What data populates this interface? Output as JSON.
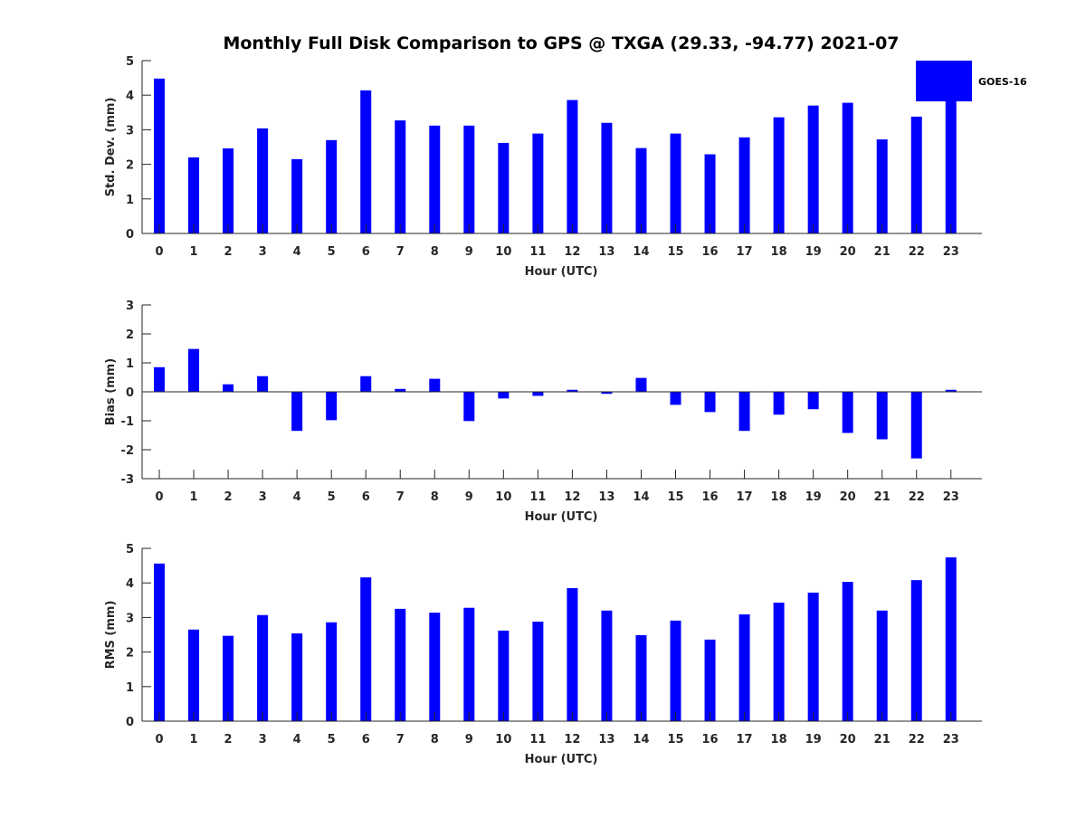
{
  "chart_data": {
    "title": "Monthly Full Disk Comparison to GPS @ TXGA (29.33, -94.77) 2021-07",
    "legend": {
      "entries": [
        "GOES-16"
      ],
      "placement": "top-right"
    },
    "bar_color": "#0000ff",
    "categories": [
      "0",
      "1",
      "2",
      "3",
      "4",
      "5",
      "6",
      "7",
      "8",
      "9",
      "10",
      "11",
      "12",
      "13",
      "14",
      "15",
      "16",
      "17",
      "18",
      "19",
      "20",
      "21",
      "22",
      "23"
    ],
    "panels": [
      {
        "type": "bar",
        "id": "std",
        "ylabel": "Std. Dev. (mm)",
        "xlabel": "Hour (UTC)",
        "ylim": [
          0,
          5
        ],
        "yticks": [
          "0",
          "1",
          "2",
          "3",
          "4",
          "5"
        ],
        "series": [
          {
            "name": "GOES-16",
            "values": [
              4.48,
              2.2,
              2.46,
              3.04,
              2.15,
              2.7,
              4.14,
              3.27,
              3.12,
              3.12,
              2.62,
              2.89,
              3.86,
              3.2,
              2.47,
              2.89,
              2.29,
              2.78,
              3.36,
              3.7,
              3.78,
              2.72,
              3.38,
              4.74
            ]
          }
        ]
      },
      {
        "type": "bar",
        "id": "bias",
        "ylabel": "Bias (mm)",
        "xlabel": "Hour (UTC)",
        "ylim": [
          -3,
          3
        ],
        "yticks": [
          "-3",
          "-2",
          "-1",
          "0",
          "1",
          "2",
          "3"
        ],
        "series": [
          {
            "name": "GOES-16",
            "values": [
              0.85,
              1.48,
              0.26,
              0.54,
              -1.35,
              -0.98,
              0.54,
              0.1,
              0.45,
              -1.01,
              -0.23,
              -0.14,
              0.07,
              -0.07,
              0.48,
              -0.45,
              -0.7,
              -1.35,
              -0.79,
              -0.6,
              -1.42,
              -1.64,
              -2.3,
              0.07
            ]
          }
        ]
      },
      {
        "type": "bar",
        "id": "rms",
        "ylabel": "RMS (mm)",
        "xlabel": "Hour (UTC)",
        "ylim": [
          0,
          5
        ],
        "yticks": [
          "0",
          "1",
          "2",
          "3",
          "4",
          "5"
        ],
        "series": [
          {
            "name": "GOES-16",
            "values": [
              4.56,
              2.65,
              2.47,
              3.07,
              2.54,
              2.86,
              4.16,
              3.25,
              3.14,
              3.28,
              2.62,
              2.88,
              3.85,
              3.2,
              2.49,
              2.91,
              2.36,
              3.09,
              3.43,
              3.72,
              4.03,
              3.2,
              4.08,
              4.74
            ]
          }
        ]
      }
    ]
  }
}
